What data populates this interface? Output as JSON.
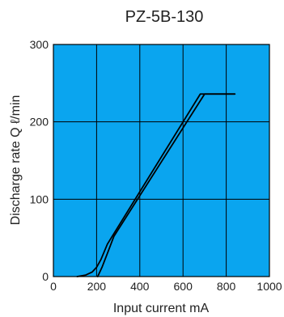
{
  "chart_data": {
    "type": "line",
    "title": "PZ-5B-130",
    "xlabel": "Input current mA",
    "ylabel": "Discharge rate Q ℓ/min",
    "xlim": [
      0,
      1000
    ],
    "ylim": [
      0,
      300
    ],
    "xticks": [
      0,
      200,
      400,
      600,
      800,
      1000
    ],
    "yticks": [
      0,
      100,
      200,
      300
    ],
    "grid": true,
    "colors": {
      "plot_background": "#0aa5ef",
      "grid": "#000000",
      "line": "#000000"
    },
    "series": [
      {
        "points": [
          [
            110,
            0
          ],
          [
            150,
            2
          ],
          [
            180,
            6
          ],
          [
            200,
            12
          ],
          [
            220,
            22
          ],
          [
            250,
            42
          ],
          [
            680,
            236
          ],
          [
            840,
            236
          ]
        ]
      },
      {
        "points": [
          [
            205,
            0
          ],
          [
            225,
            12
          ],
          [
            250,
            30
          ],
          [
            280,
            52
          ],
          [
            700,
            236
          ],
          [
            840,
            236
          ]
        ]
      }
    ]
  }
}
